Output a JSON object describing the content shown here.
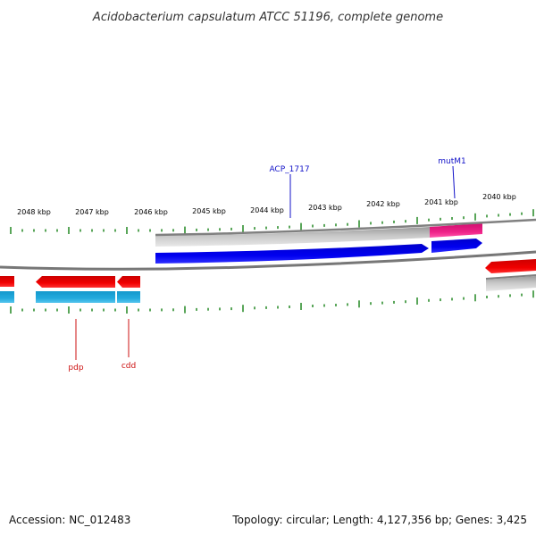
{
  "title": "Acidobacterium capsulatum ATCC 51196, complete genome",
  "footer": {
    "accession": "Accession: NC_012483",
    "summary": "Topology: circular; Length: 4,127,356 bp; Genes: 3,425"
  },
  "scale_labels": [
    "2048 kbp",
    "2047 kbp",
    "2046 kbp",
    "2045 kbp",
    "2044 kbp",
    "2043 kbp",
    "2042 kbp",
    "2041 kbp",
    "2040 kbp"
  ],
  "gene_labels": {
    "forward": [
      "ACP_1717",
      "mutM1"
    ],
    "reverse": [
      "pdp",
      "cdd"
    ]
  },
  "colors": {
    "cds_forward": "#0000ee",
    "cds_reverse": "#ee0000",
    "gene_bar": "#b8b8b8",
    "rna_highlight": "#ee2288",
    "cds_cyan": "#22aadd",
    "backbone": "#8a8a8a",
    "tick": "#228822",
    "label_forward": "#1010c8",
    "label_reverse": "#cc1010"
  }
}
